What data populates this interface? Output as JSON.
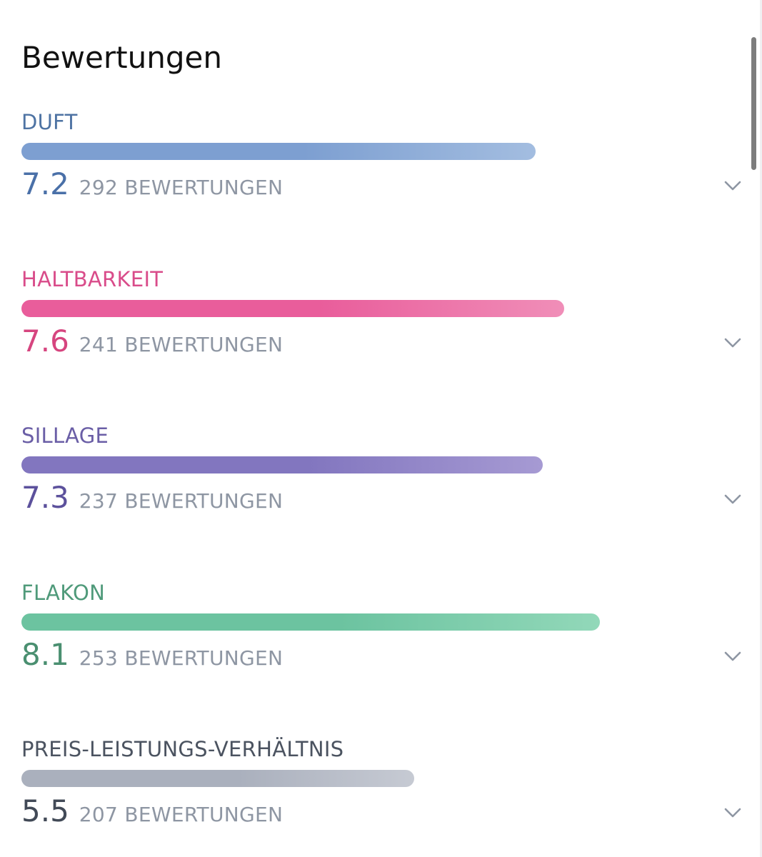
{
  "header": {
    "title": "Bewertungen"
  },
  "ratings": [
    {
      "label": "DUFT",
      "score": "7.2",
      "count": "292 BEWERTUNGEN",
      "value": 7.2,
      "label_color": "#4e73a3",
      "score_color": "#4a70a8",
      "bar_from": "#7d9fd1",
      "bar_to": "#a3bde0"
    },
    {
      "label": "HALTBARKEIT",
      "score": "7.6",
      "count": "241 BEWERTUNGEN",
      "value": 7.6,
      "label_color": "#d94c8a",
      "score_color": "#d6457f",
      "bar_from": "#e95d9b",
      "bar_to": "#f08eb8"
    },
    {
      "label": "SILLAGE",
      "score": "7.3",
      "count": "237 BEWERTUNGEN",
      "value": 7.3,
      "label_color": "#6a5ea6",
      "score_color": "#5c519c",
      "bar_from": "#8276bf",
      "bar_to": "#a69ad3"
    },
    {
      "label": "FLAKON",
      "score": "8.1",
      "count": "253 BEWERTUNGEN",
      "value": 8.1,
      "label_color": "#4f9a7a",
      "score_color": "#4a8f70",
      "bar_from": "#6cc3a0",
      "bar_to": "#92d8b9"
    },
    {
      "label": "PREIS-LEISTUNGS-VERHÄLTNIS",
      "score": "5.5",
      "count": "207 BEWERTUNGEN",
      "value": 5.5,
      "label_color": "#4b5360",
      "score_color": "#424a57",
      "bar_from": "#aab0bd",
      "bar_to": "#c6cad3"
    }
  ],
  "scale_max": 10,
  "icons": {
    "expand": "chevron-down-icon"
  }
}
